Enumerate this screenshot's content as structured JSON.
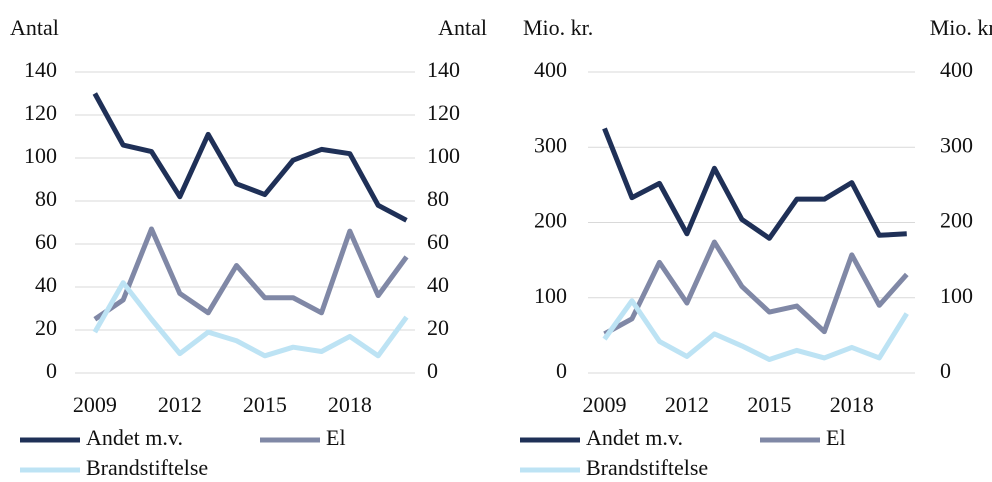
{
  "chart_data": [
    {
      "type": "line",
      "ylabel": "Antal",
      "y2label": "Antal",
      "x": [
        2009,
        2010,
        2011,
        2012,
        2013,
        2014,
        2015,
        2016,
        2017,
        2018,
        2019,
        2020
      ],
      "xlim": [
        2008.3,
        2020.3
      ],
      "xticks": [
        2009,
        2012,
        2015,
        2018
      ],
      "ylim": [
        0,
        140
      ],
      "yticks": [
        0,
        20,
        40,
        60,
        80,
        100,
        120,
        140
      ],
      "y2lim": [
        0,
        140
      ],
      "y2ticks": [
        0,
        20,
        40,
        60,
        80,
        100,
        120,
        140
      ],
      "grid": true,
      "series": [
        {
          "name": "Andet m.v.",
          "color": "#1f3057",
          "values": [
            130,
            106,
            103,
            82,
            111,
            88,
            83,
            99,
            104,
            102,
            78,
            71
          ]
        },
        {
          "name": "El",
          "color": "#8088a6",
          "values": [
            25,
            34,
            67,
            37,
            28,
            50,
            35,
            35,
            28,
            66,
            36,
            54
          ]
        },
        {
          "name": "Brandstiftelse",
          "color": "#bde3f4",
          "values": [
            19,
            42,
            25,
            9,
            19,
            15,
            8,
            12,
            10,
            17,
            8,
            26
          ]
        }
      ]
    },
    {
      "type": "line",
      "ylabel": "Mio. kr.",
      "y2label": "Mio. kr.",
      "x": [
        2009,
        2010,
        2011,
        2012,
        2013,
        2014,
        2015,
        2016,
        2017,
        2018,
        2019,
        2020
      ],
      "xlim": [
        2008.4,
        2020.3
      ],
      "xticks": [
        2009,
        2012,
        2015,
        2018
      ],
      "ylim": [
        0,
        400
      ],
      "yticks": [
        0,
        100,
        200,
        300,
        400
      ],
      "y2lim": [
        0,
        400
      ],
      "y2ticks": [
        0,
        100,
        200,
        300,
        400
      ],
      "grid": true,
      "series": [
        {
          "name": "Andet m.v.",
          "color": "#1f3057",
          "values": [
            325,
            233,
            252,
            185,
            272,
            204,
            179,
            231,
            231,
            253,
            183,
            185
          ]
        },
        {
          "name": "El",
          "color": "#8088a6",
          "values": [
            52,
            72,
            147,
            93,
            174,
            115,
            81,
            89,
            55,
            157,
            90,
            131
          ]
        },
        {
          "name": "Brandstiftelse",
          "color": "#bde3f4",
          "values": [
            45,
            96,
            42,
            22,
            52,
            36,
            18,
            30,
            20,
            34,
            20,
            79
          ]
        }
      ]
    }
  ]
}
